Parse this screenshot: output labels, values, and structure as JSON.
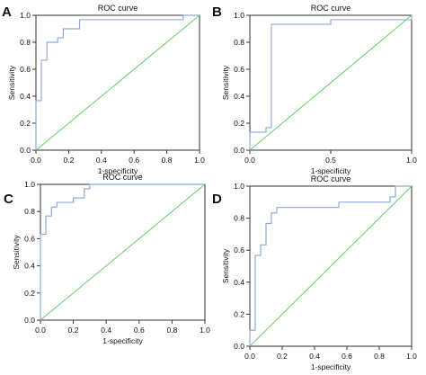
{
  "figure": {
    "colors": {
      "roc": "#8eaadb",
      "diagonal": "#66cc66",
      "axis": "#333333"
    }
  },
  "chart_data": [
    {
      "panel_letter": "A",
      "type": "line",
      "title": "ROC curve",
      "xlabel": "1-specificity",
      "ylabel": "Sensitivity",
      "xlim": [
        0,
        1
      ],
      "ylim": [
        0,
        1
      ],
      "xticks": [
        "0.0",
        "0.2",
        "0.4",
        "0.6",
        "0.8",
        "1.0"
      ],
      "yticks": [
        "0.0",
        "0.2",
        "0.4",
        "0.6",
        "0.8",
        "1.0"
      ],
      "grid": false,
      "series": [
        {
          "x": [
            0,
            0,
            0.033,
            0.033,
            0.067,
            0.067,
            0.133,
            0.133,
            0.167,
            0.167,
            0.267,
            0.267,
            0.9,
            0.9,
            1.0
          ],
          "y": [
            0,
            0.367,
            0.367,
            0.667,
            0.667,
            0.8,
            0.8,
            0.833,
            0.833,
            0.9,
            0.9,
            0.967,
            0.967,
            1.0,
            1.0
          ]
        },
        {
          "x": [
            0,
            1
          ],
          "y": [
            0,
            1
          ]
        }
      ]
    },
    {
      "panel_letter": "B",
      "type": "line",
      "title": "ROC curve",
      "xlabel": "1-specificity",
      "ylabel": "Sensitivity",
      "xlim": [
        0,
        1
      ],
      "ylim": [
        0,
        1
      ],
      "xticks": [
        "0.0",
        "0.5",
        "1.0"
      ],
      "yticks": [
        "0.0",
        "0.2",
        "0.4",
        "0.6",
        "0.8",
        "1.0"
      ],
      "grid": false,
      "series": [
        {
          "x": [
            0,
            0,
            0.1,
            0.1,
            0.133,
            0.133,
            0.5,
            0.5,
            0.733,
            0.733,
            1.0,
            1.0
          ],
          "y": [
            0,
            0.133,
            0.133,
            0.167,
            0.167,
            0.933,
            0.933,
            0.967,
            0.967,
            0.967,
            0.967,
            1.0
          ]
        },
        {
          "x": [
            0,
            1
          ],
          "y": [
            0,
            1
          ]
        }
      ]
    },
    {
      "panel_letter": "C",
      "type": "line",
      "title": "ROC curve",
      "xlabel": "1-specificity",
      "ylabel": "Sensitivity",
      "xlim": [
        0,
        1
      ],
      "ylim": [
        0,
        1
      ],
      "xticks": [
        "0.0",
        "0.2",
        "0.4",
        "0.6",
        "0.8",
        "1.0"
      ],
      "yticks": [
        "0.0",
        "0.2",
        "0.4",
        "0.6",
        "0.8",
        "1.0"
      ],
      "grid": false,
      "series": [
        {
          "x": [
            0,
            0,
            0.033,
            0.033,
            0.067,
            0.067,
            0.1,
            0.1,
            0.2,
            0.2,
            0.267,
            0.267,
            0.3,
            0.3,
            1.0
          ],
          "y": [
            0,
            0.633,
            0.633,
            0.767,
            0.767,
            0.833,
            0.833,
            0.867,
            0.867,
            0.9,
            0.9,
            0.967,
            0.967,
            1.0,
            1.0
          ]
        },
        {
          "x": [
            0,
            1
          ],
          "y": [
            0,
            1
          ]
        }
      ]
    },
    {
      "panel_letter": "D",
      "type": "line",
      "title": "ROC curve",
      "xlabel": "1-specificity",
      "ylabel": "Sensitivity",
      "xlim": [
        0,
        1
      ],
      "ylim": [
        0,
        1
      ],
      "xticks": [
        "0.0",
        "0.2",
        "0.4",
        "0.6",
        "0.8",
        "1.0"
      ],
      "yticks": [
        "0.0",
        "0.2",
        "0.4",
        "0.6",
        "0.8",
        "1.0"
      ],
      "grid": false,
      "series": [
        {
          "x": [
            0,
            0,
            0.033,
            0.033,
            0.067,
            0.067,
            0.1,
            0.1,
            0.133,
            0.133,
            0.167,
            0.167,
            0.55,
            0.55,
            0.867,
            0.867,
            0.9,
            0.9,
            1.0
          ],
          "y": [
            0,
            0.1,
            0.1,
            0.567,
            0.567,
            0.633,
            0.633,
            0.767,
            0.767,
            0.833,
            0.833,
            0.867,
            0.867,
            0.9,
            0.9,
            0.933,
            0.933,
            1.0,
            1.0
          ]
        },
        {
          "x": [
            0,
            1
          ],
          "y": [
            0,
            1
          ]
        }
      ]
    }
  ]
}
